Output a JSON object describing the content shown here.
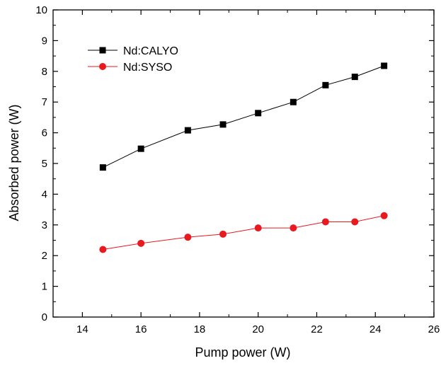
{
  "chart_data": {
    "type": "line",
    "title": "",
    "xlabel": "Pump power (W)",
    "ylabel": "Absorbed power (W)",
    "xlim": [
      13,
      26
    ],
    "ylim": [
      0,
      10
    ],
    "x_ticks": [
      14,
      16,
      18,
      20,
      22,
      24,
      26
    ],
    "y_ticks": [
      0,
      1,
      2,
      3,
      4,
      5,
      6,
      7,
      8,
      9,
      10
    ],
    "x_tick_labels": [
      "14",
      "16",
      "18",
      "20",
      "22",
      "24",
      "26"
    ],
    "y_tick_labels": [
      "0",
      "1",
      "2",
      "3",
      "4",
      "5",
      "6",
      "7",
      "8",
      "9",
      "10"
    ],
    "grid": false,
    "legend_position": "top-left",
    "series": [
      {
        "name": "Nd:CALYO",
        "marker": "square",
        "line_color": "#000000",
        "marker_color": "#000000",
        "x": [
          14.7,
          16.0,
          17.6,
          18.8,
          20.0,
          21.2,
          22.3,
          23.3,
          24.3
        ],
        "y": [
          4.87,
          5.48,
          6.08,
          6.27,
          6.64,
          7.0,
          7.55,
          7.82,
          8.18
        ]
      },
      {
        "name": "Nd:SYSO",
        "marker": "circle",
        "line_color": "#e8191f",
        "marker_color": "#e8191f",
        "x": [
          14.7,
          16.0,
          17.6,
          18.8,
          20.0,
          21.2,
          22.3,
          23.3,
          24.3
        ],
        "y": [
          2.2,
          2.4,
          2.6,
          2.7,
          2.9,
          2.9,
          3.1,
          3.1,
          3.3
        ]
      }
    ]
  }
}
